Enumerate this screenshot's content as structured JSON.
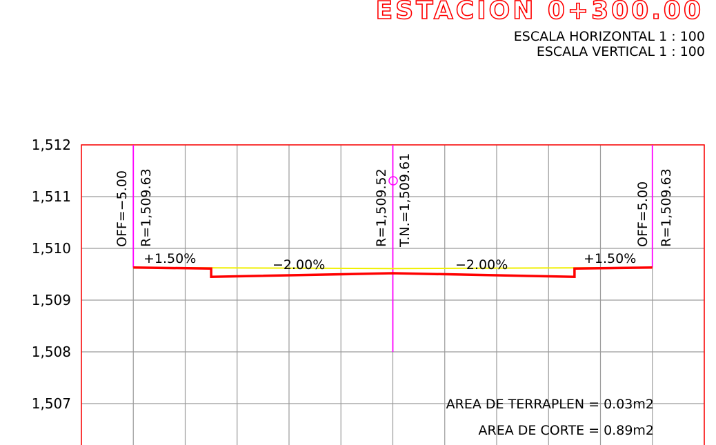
{
  "chart_data": {
    "type": "line",
    "title": "ESTACION 0+300.00",
    "subtitle": [
      "ESCALA HORIZONTAL 1 : 100",
      "ESCALA VERTICAL 1 : 100"
    ],
    "xlim": [
      -6,
      6
    ],
    "xticks": [
      -6,
      -5,
      -4,
      -3,
      -2,
      -1,
      0,
      1,
      2,
      3,
      4,
      5,
      6
    ],
    "ylim": [
      1506.2,
      1512
    ],
    "yticks": [
      {
        "value": 1507,
        "label": "1,507"
      },
      {
        "value": 1508,
        "label": "1,508"
      },
      {
        "value": 1509,
        "label": "1,509"
      },
      {
        "value": 1510,
        "label": "1,510"
      },
      {
        "value": 1511,
        "label": "1,511"
      },
      {
        "value": 1512,
        "label": "1,512"
      }
    ],
    "grid": true,
    "series": [
      {
        "name": "T.N.",
        "color": "#f0f000",
        "x": [
          -5,
          0,
          5
        ],
        "values": [
          1509.63,
          1509.61,
          1509.63
        ]
      },
      {
        "name": "R",
        "color": "#ff0000",
        "x": [
          -5,
          -3.5,
          -3.5,
          0,
          3.5,
          3.5,
          5
        ],
        "values": [
          1509.63,
          1509.61,
          1509.45,
          1509.52,
          1509.45,
          1509.61,
          1509.63
        ]
      }
    ],
    "offset_lines": [
      {
        "x": -5,
        "from": 1509.63,
        "to": 1512
      },
      {
        "x": 0,
        "from": 1508,
        "to": 1512
      },
      {
        "x": 5,
        "from": 1509.63,
        "to": 1512
      }
    ],
    "annotations": [
      "OFF=−5.00",
      "R=1,509.63",
      "R=1,509.52",
      "T.N.=1,509.61",
      "OFF=5.00",
      "R=1,509.63",
      "+1.50%",
      "−2.00%",
      "−2.00%",
      "+1.50%",
      "AREA DE TERRAPLEN = 0.03m2",
      "AREA DE CORTE = 0.89m2"
    ]
  }
}
